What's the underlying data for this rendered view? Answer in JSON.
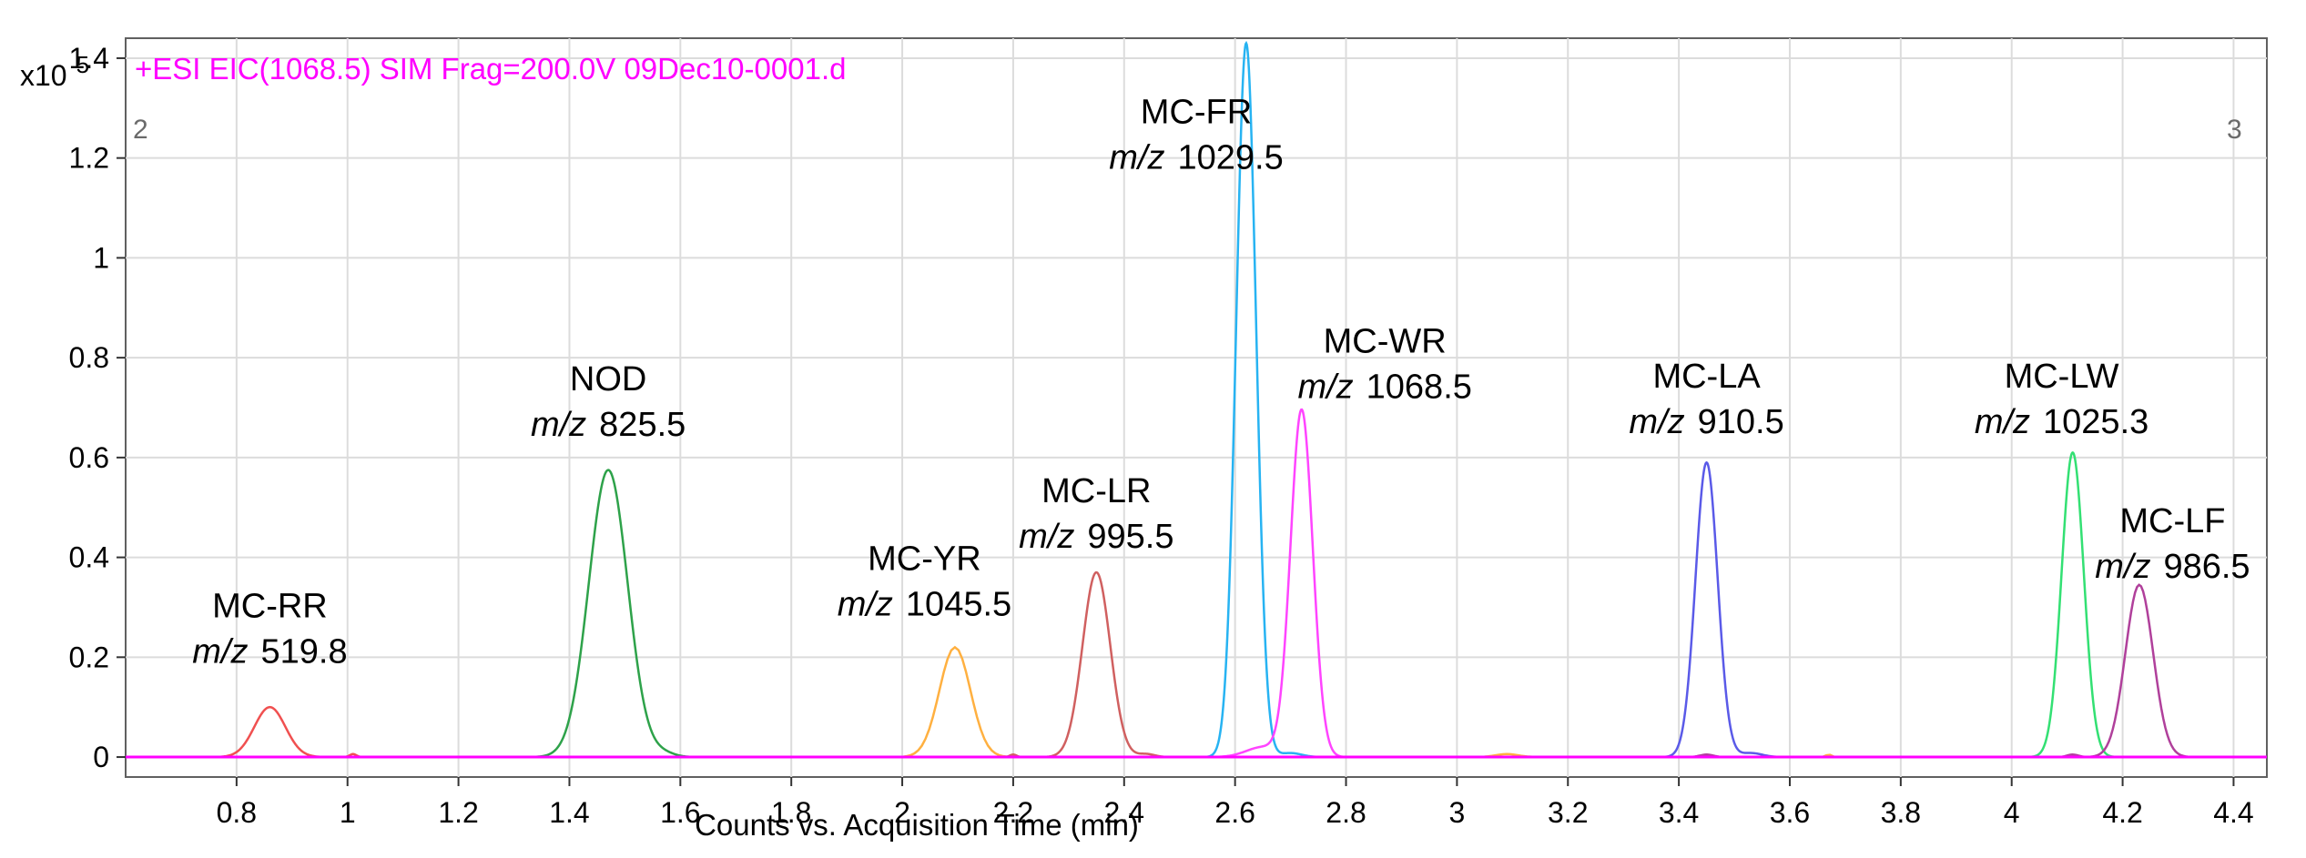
{
  "chart_data": {
    "type": "line",
    "title": "+ESI EIC(1068.5) SIM Frag=200.0V 09Dec10-0001.d",
    "xlabel": "Counts vs. Acquisition Time (min)",
    "ylabel": "",
    "y_scale_label_base": "x10",
    "y_scale_label_exp": "5",
    "xlim": [
      0.6,
      4.46
    ],
    "ylim": [
      -0.04,
      1.44
    ],
    "x_ticks": [
      0.8,
      1,
      1.2,
      1.4,
      1.6,
      1.8,
      2,
      2.2,
      2.4,
      2.6,
      2.8,
      3,
      3.2,
      3.4,
      3.6,
      3.8,
      4,
      4.2,
      4.4
    ],
    "x_tick_labels": [
      "0.8",
      "1",
      "1.2",
      "1.4",
      "1.6",
      "1.8",
      "2",
      "2.2",
      "2.4",
      "2.6",
      "2.8",
      "3",
      "3.2",
      "3.4",
      "3.6",
      "3.8",
      "4",
      "4.2",
      "4.4"
    ],
    "y_ticks": [
      0,
      0.2,
      0.4,
      0.6,
      0.8,
      1,
      1.2,
      1.4
    ],
    "y_tick_labels": [
      "0",
      "0.2",
      "0.4",
      "0.6",
      "0.8",
      "1",
      "1.2",
      "1.4"
    ],
    "grid": true,
    "corner_left_text": "2",
    "corner_right_text": "3",
    "baseline_color": "#ff00ff",
    "series": [
      {
        "name": "MC-RR",
        "color": "#f05050",
        "peak_x": 0.86,
        "peak_y": 0.1,
        "width": 0.028,
        "extra": [
          {
            "x": 1.01,
            "y": 0.006,
            "w": 0.006
          }
        ]
      },
      {
        "name": "NOD",
        "color": "#2ea24a",
        "peak_x": 1.47,
        "peak_y": 0.575,
        "width": 0.035,
        "extra": [
          {
            "x": 1.57,
            "y": 0.007,
            "w": 0.02
          }
        ]
      },
      {
        "name": "MC-YR",
        "color": "#ffb040",
        "peak_x": 2.095,
        "peak_y": 0.22,
        "width": 0.028,
        "extra": [
          {
            "x": 3.09,
            "y": 0.006,
            "w": 0.02
          },
          {
            "x": 3.67,
            "y": 0.005,
            "w": 0.005
          }
        ]
      },
      {
        "name": "MC-LR",
        "color": "#d06060",
        "peak_x": 2.35,
        "peak_y": 0.37,
        "width": 0.025,
        "extra": [
          {
            "x": 2.2,
            "y": 0.005,
            "w": 0.006
          },
          {
            "x": 2.44,
            "y": 0.006,
            "w": 0.015
          }
        ]
      },
      {
        "name": "MC-FR",
        "color": "#27b3f2",
        "peak_x": 2.62,
        "peak_y": 1.43,
        "width": 0.018,
        "extra": [
          {
            "x": 2.7,
            "y": 0.008,
            "w": 0.02
          }
        ]
      },
      {
        "name": "MC-WR",
        "color": "#ff44ff",
        "peak_x": 2.72,
        "peak_y": 0.695,
        "width": 0.02,
        "extra": [
          {
            "x": 2.65,
            "y": 0.02,
            "w": 0.03
          }
        ]
      },
      {
        "name": "MC-LA",
        "color": "#5a5ae8",
        "peak_x": 3.45,
        "peak_y": 0.59,
        "width": 0.02,
        "extra": [
          {
            "x": 3.53,
            "y": 0.008,
            "w": 0.02
          }
        ]
      },
      {
        "name": "MC-LW",
        "color": "#33e073",
        "peak_x": 4.11,
        "peak_y": 0.61,
        "width": 0.02,
        "extra": []
      },
      {
        "name": "MC-LF",
        "color": "#b0409b",
        "peak_x": 4.23,
        "peak_y": 0.345,
        "width": 0.025,
        "extra": [
          {
            "x": 3.45,
            "y": 0.005,
            "w": 0.012
          },
          {
            "x": 4.11,
            "y": 0.005,
            "w": 0.01
          }
        ]
      }
    ],
    "annotations": [
      {
        "name": "MC-RR",
        "mz_prefix": "m/z",
        "mz": "519.8",
        "x": 0.86,
        "y": 0.28
      },
      {
        "name": "NOD",
        "mz_prefix": "m/z",
        "mz": "825.5",
        "x": 1.47,
        "y": 0.735
      },
      {
        "name": "MC-YR",
        "mz_prefix": "m/z",
        "mz": "1045.5",
        "x": 2.04,
        "y": 0.375
      },
      {
        "name": "MC-LR",
        "mz_prefix": "m/z",
        "mz": "995.5",
        "x": 2.35,
        "y": 0.51
      },
      {
        "name": "MC-FR",
        "mz_prefix": "m/z",
        "mz": "1029.5",
        "x": 2.53,
        "y": 1.27
      },
      {
        "name": "MC-WR",
        "mz_prefix": "m/z",
        "mz": "1068.5",
        "x": 2.87,
        "y": 0.81
      },
      {
        "name": "MC-LA",
        "mz_prefix": "m/z",
        "mz": "910.5",
        "x": 3.45,
        "y": 0.74
      },
      {
        "name": "MC-LW",
        "mz_prefix": "m/z",
        "mz": "1025.3",
        "x": 4.09,
        "y": 0.74
      },
      {
        "name": "MC-LF",
        "mz_prefix": "m/z",
        "mz": "986.5",
        "x": 4.29,
        "y": 0.45
      }
    ]
  }
}
